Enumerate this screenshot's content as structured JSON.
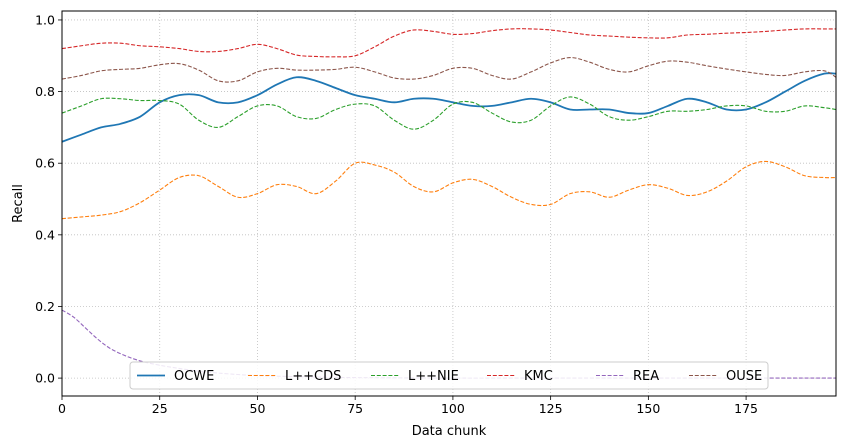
{
  "chart_data": {
    "type": "line",
    "title": "",
    "xlabel": "Data chunk",
    "ylabel": "Recall",
    "xlim": [
      0,
      198
    ],
    "ylim": [
      -0.05,
      1.025
    ],
    "xticks": [
      0,
      25,
      50,
      75,
      100,
      125,
      150,
      175
    ],
    "yticks": [
      0.0,
      0.2,
      0.4,
      0.6,
      0.8,
      1.0
    ],
    "xtick_labels": [
      "0",
      "25",
      "50",
      "75",
      "100",
      "125",
      "150",
      "175"
    ],
    "ytick_labels": [
      "0.0",
      "0.2",
      "0.4",
      "0.6",
      "0.8",
      "1.0"
    ],
    "grid": true,
    "legend_position": "lower center",
    "series": [
      {
        "name": "OCWE",
        "color": "#1f77b4",
        "style": "solid",
        "x": [
          0,
          5,
          10,
          15,
          20,
          25,
          30,
          35,
          40,
          45,
          50,
          55,
          60,
          65,
          70,
          75,
          80,
          85,
          90,
          95,
          100,
          105,
          110,
          115,
          120,
          125,
          130,
          135,
          140,
          145,
          150,
          155,
          160,
          165,
          170,
          175,
          180,
          185,
          190,
          195,
          198
        ],
        "y": [
          0.66,
          0.68,
          0.7,
          0.71,
          0.73,
          0.77,
          0.79,
          0.79,
          0.77,
          0.77,
          0.79,
          0.82,
          0.84,
          0.83,
          0.81,
          0.79,
          0.78,
          0.77,
          0.78,
          0.78,
          0.77,
          0.76,
          0.76,
          0.77,
          0.78,
          0.77,
          0.75,
          0.75,
          0.75,
          0.74,
          0.74,
          0.76,
          0.78,
          0.77,
          0.75,
          0.75,
          0.77,
          0.8,
          0.83,
          0.85,
          0.85
        ]
      },
      {
        "name": "L++CDS",
        "color": "#ff7f0e",
        "style": "dashed",
        "x": [
          0,
          5,
          10,
          15,
          20,
          25,
          30,
          35,
          40,
          45,
          50,
          55,
          60,
          65,
          70,
          75,
          80,
          85,
          90,
          95,
          100,
          105,
          110,
          115,
          120,
          125,
          130,
          135,
          140,
          145,
          150,
          155,
          160,
          165,
          170,
          175,
          180,
          185,
          190,
          195,
          198
        ],
        "y": [
          0.445,
          0.45,
          0.455,
          0.465,
          0.49,
          0.525,
          0.56,
          0.565,
          0.535,
          0.505,
          0.515,
          0.54,
          0.535,
          0.515,
          0.55,
          0.6,
          0.595,
          0.575,
          0.535,
          0.52,
          0.545,
          0.555,
          0.535,
          0.505,
          0.485,
          0.485,
          0.515,
          0.52,
          0.505,
          0.525,
          0.54,
          0.53,
          0.51,
          0.52,
          0.55,
          0.59,
          0.605,
          0.59,
          0.565,
          0.56,
          0.56
        ]
      },
      {
        "name": "L++NIE",
        "color": "#2ca02c",
        "style": "dashed",
        "x": [
          0,
          5,
          10,
          15,
          20,
          25,
          30,
          35,
          40,
          45,
          50,
          55,
          60,
          65,
          70,
          75,
          80,
          85,
          90,
          95,
          100,
          105,
          110,
          115,
          120,
          125,
          130,
          135,
          140,
          145,
          150,
          155,
          160,
          165,
          170,
          175,
          180,
          185,
          190,
          195,
          198
        ],
        "y": [
          0.74,
          0.76,
          0.78,
          0.78,
          0.775,
          0.775,
          0.765,
          0.72,
          0.7,
          0.73,
          0.76,
          0.76,
          0.73,
          0.725,
          0.75,
          0.765,
          0.76,
          0.72,
          0.695,
          0.72,
          0.765,
          0.77,
          0.74,
          0.715,
          0.72,
          0.76,
          0.785,
          0.765,
          0.73,
          0.72,
          0.73,
          0.745,
          0.745,
          0.75,
          0.76,
          0.76,
          0.745,
          0.745,
          0.76,
          0.755,
          0.75
        ]
      },
      {
        "name": "KMC",
        "color": "#d62728",
        "style": "dashed",
        "x": [
          0,
          5,
          10,
          15,
          20,
          25,
          30,
          35,
          40,
          45,
          50,
          55,
          60,
          65,
          70,
          75,
          80,
          85,
          90,
          95,
          100,
          105,
          110,
          115,
          120,
          125,
          130,
          135,
          140,
          145,
          150,
          155,
          160,
          165,
          170,
          175,
          180,
          185,
          190,
          195,
          198
        ],
        "y": [
          0.92,
          0.928,
          0.935,
          0.935,
          0.928,
          0.925,
          0.92,
          0.912,
          0.912,
          0.92,
          0.932,
          0.92,
          0.902,
          0.898,
          0.897,
          0.9,
          0.925,
          0.955,
          0.972,
          0.968,
          0.96,
          0.962,
          0.97,
          0.975,
          0.975,
          0.972,
          0.965,
          0.958,
          0.955,
          0.952,
          0.95,
          0.95,
          0.958,
          0.96,
          0.963,
          0.965,
          0.968,
          0.972,
          0.975,
          0.975,
          0.975
        ]
      },
      {
        "name": "REA",
        "color": "#9467bd",
        "style": "dashed",
        "x": [
          0,
          3,
          6,
          9,
          12,
          15,
          18,
          21,
          24,
          27,
          30,
          33,
          36,
          40,
          45,
          50,
          60,
          70,
          80,
          100,
          120,
          140,
          160,
          180,
          198
        ],
        "y": [
          0.19,
          0.17,
          0.14,
          0.11,
          0.085,
          0.068,
          0.055,
          0.045,
          0.038,
          0.032,
          0.027,
          0.022,
          0.018,
          0.014,
          0.01,
          0.007,
          0.004,
          0.002,
          0.001,
          0.0,
          0.0,
          0.0,
          0.0,
          0.0,
          0.0
        ]
      },
      {
        "name": "OUSE",
        "color": "#8c564b",
        "style": "dashed",
        "x": [
          0,
          5,
          10,
          15,
          20,
          25,
          30,
          35,
          40,
          45,
          50,
          55,
          60,
          65,
          70,
          75,
          80,
          85,
          90,
          95,
          100,
          105,
          110,
          115,
          120,
          125,
          130,
          135,
          140,
          145,
          150,
          155,
          160,
          165,
          170,
          175,
          180,
          185,
          190,
          195,
          198
        ],
        "y": [
          0.835,
          0.845,
          0.858,
          0.862,
          0.865,
          0.875,
          0.878,
          0.86,
          0.83,
          0.83,
          0.855,
          0.865,
          0.86,
          0.86,
          0.862,
          0.868,
          0.855,
          0.838,
          0.835,
          0.845,
          0.865,
          0.865,
          0.845,
          0.835,
          0.855,
          0.88,
          0.895,
          0.882,
          0.862,
          0.855,
          0.872,
          0.885,
          0.882,
          0.872,
          0.863,
          0.855,
          0.848,
          0.845,
          0.855,
          0.858,
          0.84
        ]
      }
    ]
  }
}
